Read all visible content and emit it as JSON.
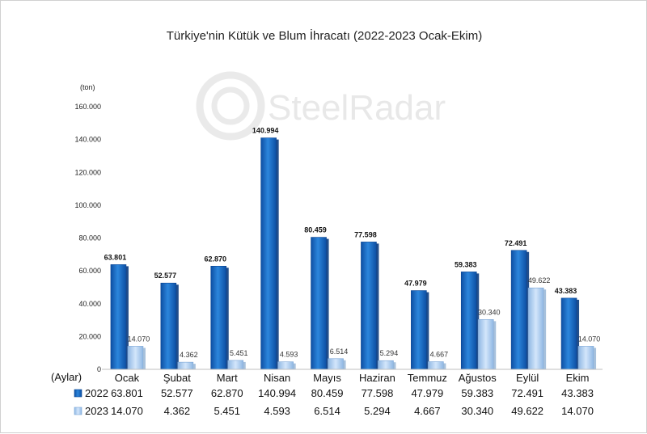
{
  "chart_data": {
    "type": "bar",
    "title": "Türkiye'nin Kütük ve Blum İhracatı (2022-2023 Ocak-Ekim)",
    "ylabel": "(ton)",
    "xlabel": "(Aylar)",
    "watermark": "SteelRadar",
    "ylim": [
      0,
      160000
    ],
    "yticks": [
      "0",
      "20.000",
      "40.000",
      "60.000",
      "80.000",
      "100.000",
      "120.000",
      "140.000",
      "160.000"
    ],
    "categories": [
      "Ocak",
      "Şubat",
      "Mart",
      "Nisan",
      "Mayıs",
      "Haziran",
      "Temmuz",
      "Ağustos",
      "Eylül",
      "Ekim"
    ],
    "series": [
      {
        "name": "2022",
        "color": "#1f6fc5",
        "values": [
          63801,
          52577,
          62870,
          140994,
          80459,
          77598,
          47979,
          59383,
          72491,
          43383
        ],
        "labels": [
          "63.801",
          "52.577",
          "62.870",
          "140.994",
          "80.459",
          "77.598",
          "47.979",
          "59.383",
          "72.491",
          "43.383"
        ]
      },
      {
        "name": "2023",
        "color": "#a9cbef",
        "values": [
          14070,
          4362,
          5451,
          4593,
          6514,
          5294,
          4667,
          30340,
          49622,
          14070
        ],
        "labels": [
          "14.070",
          "4.362",
          "5.451",
          "4.593",
          "6.514",
          "5.294",
          "4.667",
          "30.340",
          "49.622",
          "14.070"
        ]
      }
    ],
    "data_table": true,
    "legend_placement": "data-table-left"
  }
}
